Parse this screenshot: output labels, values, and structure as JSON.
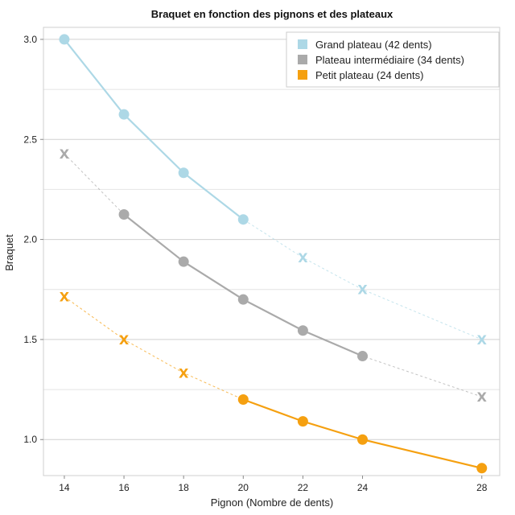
{
  "chart_data": {
    "type": "line",
    "title": "Braquet en fonction des pignons et des plateaux",
    "xlabel": "Pignon (Nombre de dents)",
    "ylabel": "Braquet",
    "x": [
      14,
      16,
      18,
      20,
      22,
      24,
      28
    ],
    "x_ticks": [
      "14",
      "16",
      "18",
      "20",
      "22",
      "24",
      "28"
    ],
    "y_ticks": [
      1.0,
      1.5,
      2.0,
      2.5,
      3.0
    ],
    "y_tick_labels": [
      "1.0",
      "1.5",
      "2.0",
      "2.5",
      "3.0"
    ],
    "xlim": [
      13.3,
      28.6
    ],
    "ylim": [
      0.82,
      3.06
    ],
    "legend_position": "top-right",
    "marker_unused_symbol": "X",
    "series": [
      {
        "name": "Grand plateau (42 dents)",
        "color": "#add8e6",
        "values": [
          3.0,
          2.625,
          2.333,
          2.1,
          1.909,
          1.75,
          1.5
        ],
        "used": [
          true,
          true,
          true,
          true,
          false,
          false,
          false
        ]
      },
      {
        "name": "Plateau intermédiaire (34 dents)",
        "color": "#aaaaaa",
        "values": [
          2.429,
          2.125,
          1.889,
          1.7,
          1.545,
          1.417,
          1.214
        ],
        "used": [
          false,
          true,
          true,
          true,
          true,
          true,
          false
        ]
      },
      {
        "name": "Petit plateau (24 dents)",
        "color": "#f5a010",
        "values": [
          1.714,
          1.5,
          1.333,
          1.2,
          1.091,
          1.0,
          0.857
        ],
        "used": [
          false,
          false,
          false,
          true,
          true,
          true,
          true
        ]
      }
    ]
  }
}
